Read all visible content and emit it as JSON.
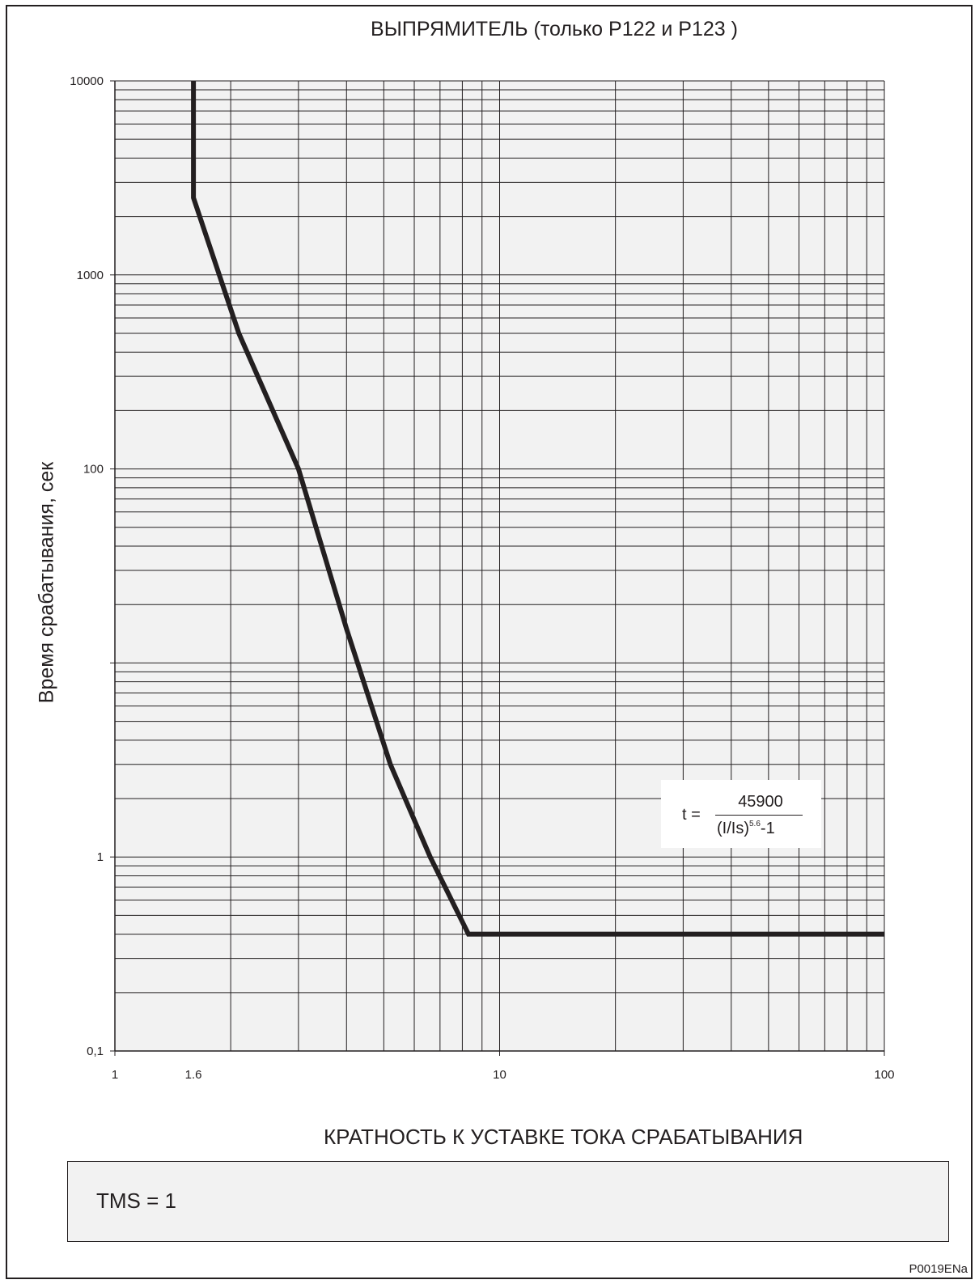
{
  "chart_data": {
    "type": "line",
    "title": "ВЫПРЯМИТЕЛЬ (только P122 и P123 )",
    "xlabel": "КРАТНОСТЬ К УСТАВКЕ ТОКА СРАБАТЫВАНИЯ",
    "ylabel": "Время срабатывания, сек",
    "x_scale": "log",
    "y_scale": "log",
    "xlim": [
      1,
      100
    ],
    "ylim": [
      0.1,
      10000
    ],
    "grid": true,
    "x_ticks": [
      {
        "value": 1,
        "label": "1"
      },
      {
        "value": 1.6,
        "label": "1.6"
      },
      {
        "value": 10,
        "label": "10"
      },
      {
        "value": 100,
        "label": "100"
      }
    ],
    "y_ticks": [
      {
        "value": 0.1,
        "label": "0,1"
      },
      {
        "value": 1,
        "label": "1"
      },
      {
        "value": 100,
        "label": "100"
      },
      {
        "value": 1000,
        "label": "1000"
      },
      {
        "value": 10000,
        "label": "10000"
      }
    ],
    "series": [
      {
        "x": [
          1.6,
          1.6,
          2.1,
          3.0,
          4.0,
          5.2,
          6.6,
          8.3,
          100
        ],
        "y": [
          10000,
          2500,
          500,
          100,
          15,
          3,
          1.0,
          0.4,
          0.4
        ]
      }
    ],
    "formula": {
      "prefix": "t =",
      "numerator": "45900",
      "denominator_base": "(I/Is)",
      "denominator_exp": "5.6",
      "denominator_tail": "-1"
    }
  },
  "tms_label": "TMS = 1",
  "figure_code": "P0019ENa"
}
